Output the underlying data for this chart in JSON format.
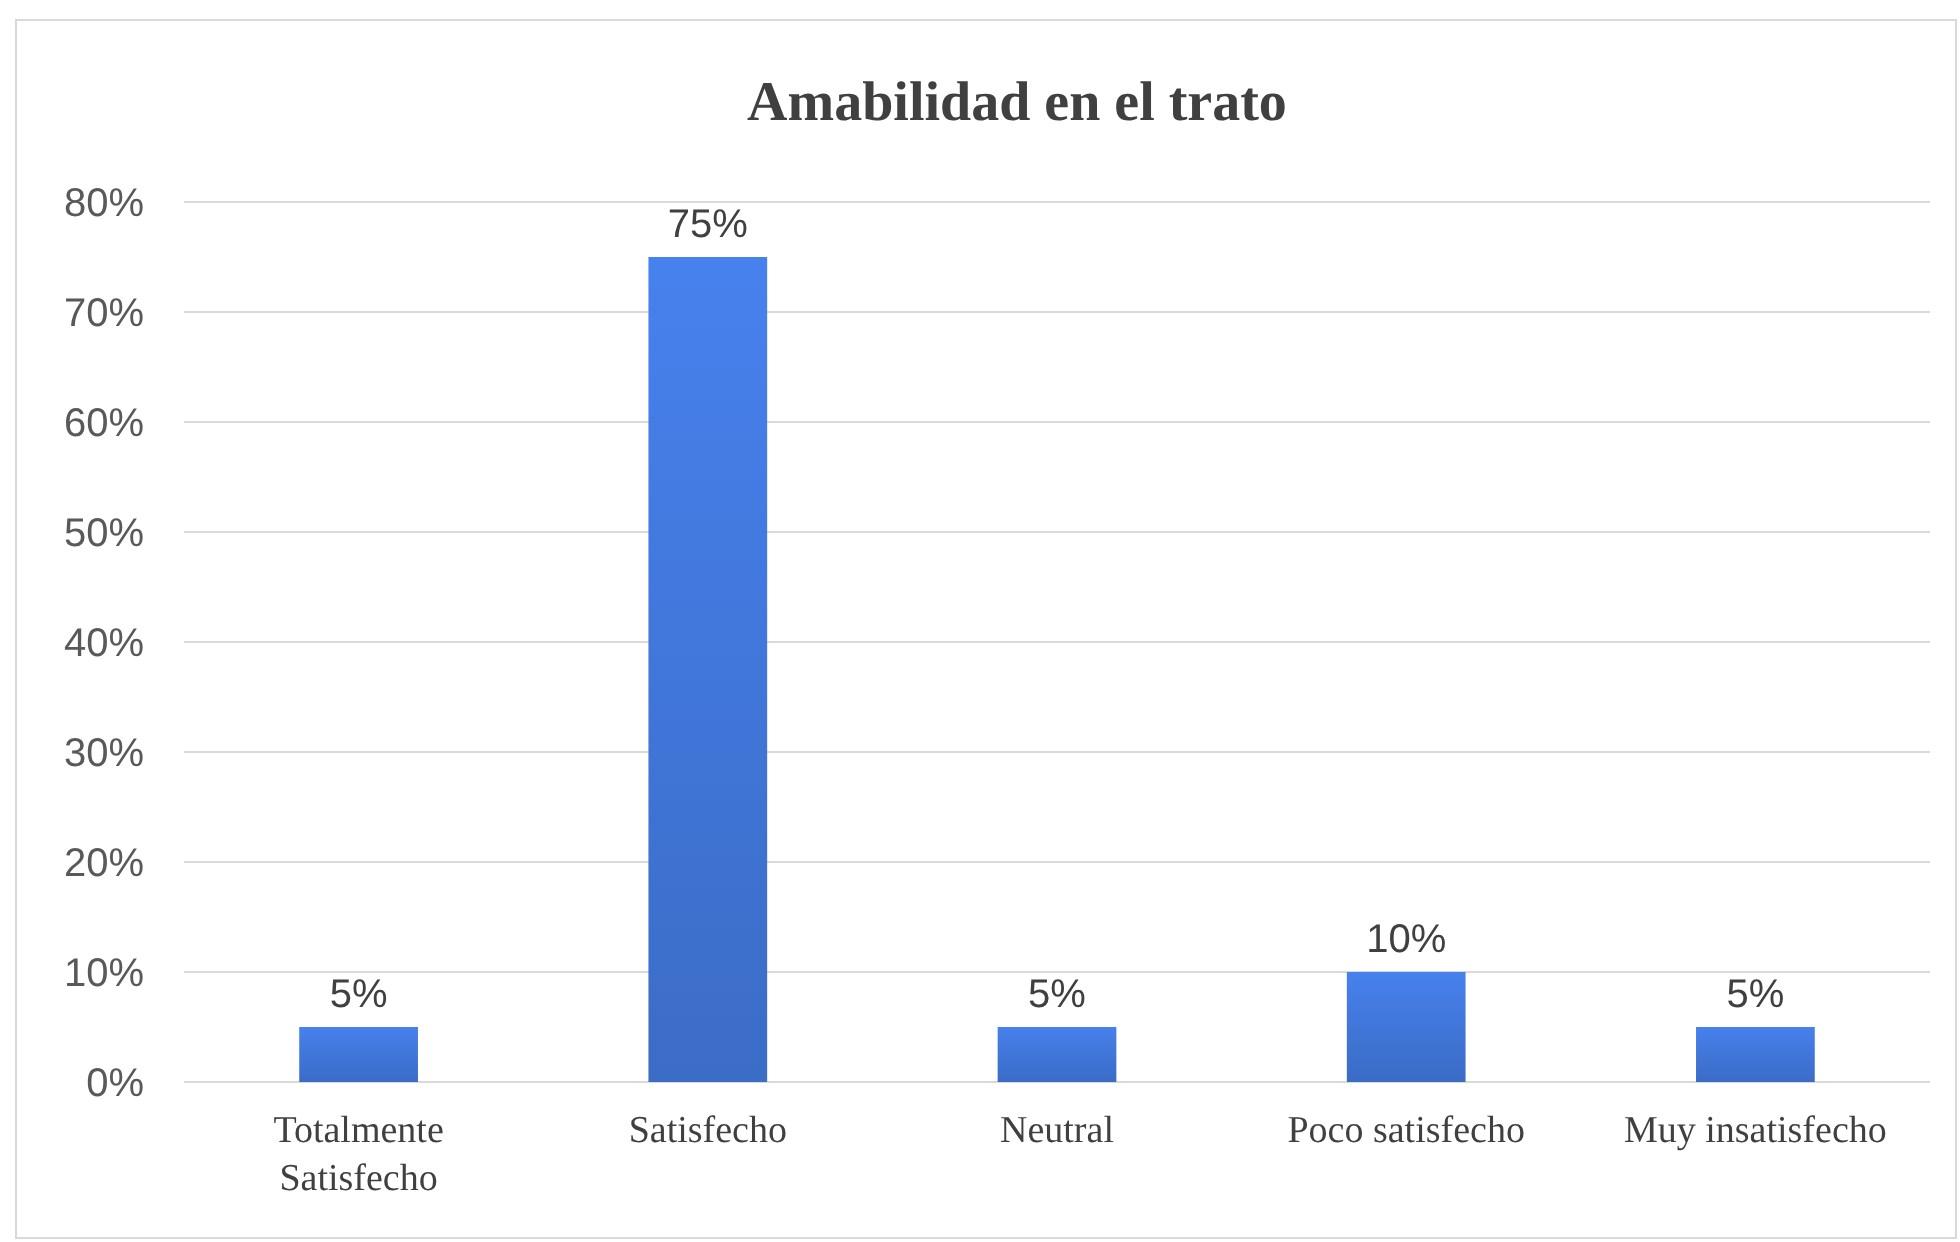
{
  "chart_data": {
    "type": "bar",
    "title": "Amabilidad en el trato",
    "categories": [
      "Totalmente Satisfecho",
      "Satisfecho",
      "Neutral",
      "Poco satisfecho",
      "Muy insatisfecho"
    ],
    "values": [
      5,
      75,
      5,
      10,
      5
    ],
    "value_labels": [
      "5%",
      "75%",
      "5%",
      "10%",
      "5%"
    ],
    "color": "#3b6cc6",
    "ylim": [
      0,
      80
    ],
    "yticks": [
      {
        "value": 0,
        "label": "0%"
      },
      {
        "value": 10,
        "label": "10%"
      },
      {
        "value": 20,
        "label": "20%"
      },
      {
        "value": 30,
        "label": "30%"
      },
      {
        "value": 40,
        "label": "40%"
      },
      {
        "value": 50,
        "label": "50%"
      },
      {
        "value": 60,
        "label": "60%"
      },
      {
        "value": 70,
        "label": "70%"
      },
      {
        "value": 80,
        "label": "80%"
      }
    ],
    "grid": "y"
  }
}
